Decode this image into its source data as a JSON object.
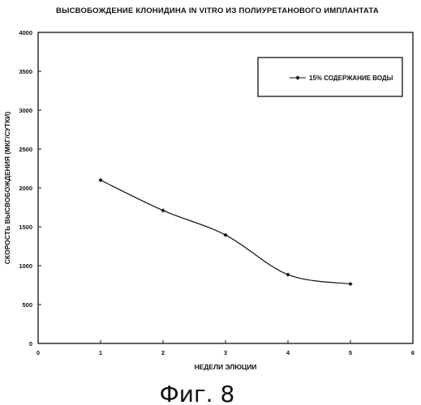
{
  "figure": {
    "title": "ВЫСВОБОЖДЕНИЕ КЛОНИДИНА IN VITRO ИЗ ПОЛИУРЕТАНОВОГО ИМПЛАНТАТА",
    "caption": "Фиг. 8"
  },
  "chart_data": {
    "type": "line",
    "title": "ВЫСВОБОЖДЕНИЕ КЛОНИДИНА IN VITRO ИЗ ПОЛИУРЕТАНОВОГО ИМПЛАНТАТА",
    "xlabel": "НЕДЕЛИ ЭЛЮЦИИ",
    "ylabel": "СКОРОСТЬ ВЫСВОБОЖДЕНИЯ (МКГ/СУТКИ)",
    "xlim": [
      0,
      6
    ],
    "ylim": [
      0,
      4000
    ],
    "xticks": [
      "0",
      "1",
      "2",
      "3",
      "4",
      "5",
      "6"
    ],
    "yticks": [
      "0",
      "500",
      "1000",
      "1500",
      "2000",
      "2500",
      "3000",
      "3500",
      "4000"
    ],
    "grid": false,
    "legend_position": "top-right",
    "series": [
      {
        "name": "15% СОДЕРЖАНИЕ ВОДЫ",
        "color": "#111111",
        "marker": "diamond",
        "x": [
          1,
          2,
          3,
          4,
          5
        ],
        "y": [
          2100,
          1710,
          1395,
          885,
          765
        ]
      }
    ]
  }
}
